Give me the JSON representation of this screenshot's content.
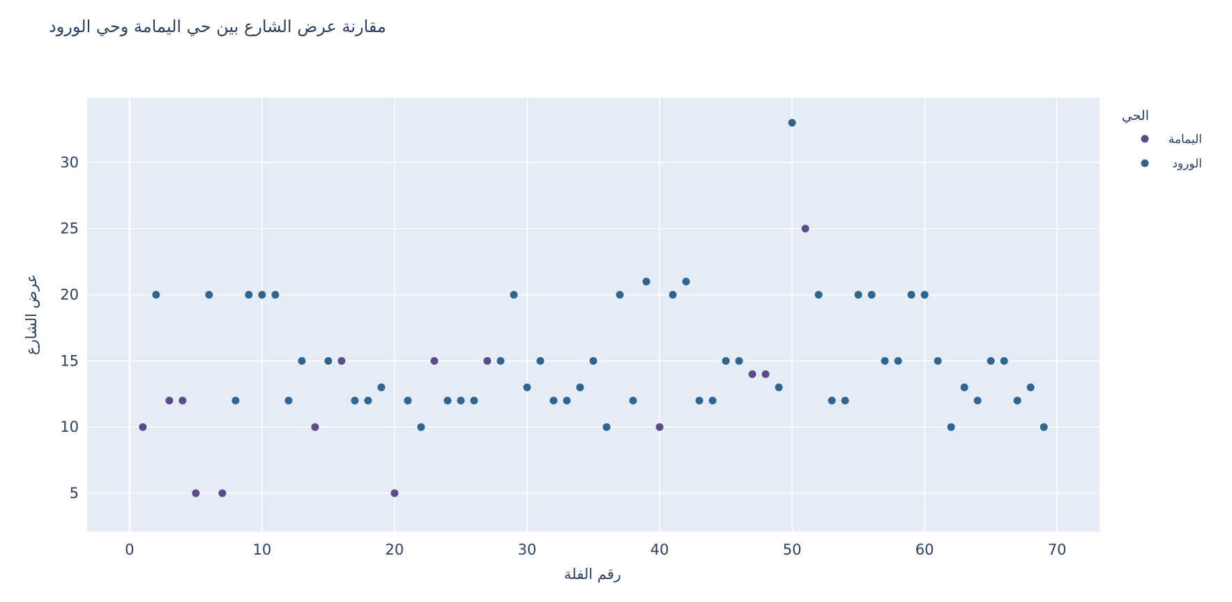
{
  "chart_data": {
    "type": "scatter",
    "title": "مقارنة عرض الشارع بين حي اليمامة وحي الورود",
    "xlabel": "رقم الفلة",
    "ylabel": "عرض الشارع",
    "xlim": [
      -3.2,
      73.2
    ],
    "ylim": [
      2.1,
      34.9
    ],
    "x_ticks": [
      0,
      10,
      20,
      30,
      40,
      50,
      60,
      70
    ],
    "y_ticks": [
      5,
      10,
      15,
      20,
      25,
      30
    ],
    "grid": true,
    "legend": {
      "title": "الحي",
      "position": "top-right"
    },
    "plot_bgcolor": "#e5ecf6",
    "series": [
      {
        "name": "اليمامة",
        "color": "#5c4a8c",
        "x": [
          1,
          3,
          4,
          5,
          7,
          14,
          16,
          20,
          23,
          27,
          40,
          47,
          48,
          51
        ],
        "y": [
          10,
          12,
          12,
          5,
          5,
          10,
          15,
          5,
          15,
          15,
          10,
          14,
          14,
          25
        ]
      },
      {
        "name": "الورود",
        "color": "#2f6591",
        "x": [
          2,
          6,
          8,
          9,
          10,
          11,
          12,
          13,
          15,
          17,
          18,
          19,
          21,
          22,
          24,
          25,
          26,
          28,
          29,
          30,
          31,
          32,
          33,
          34,
          35,
          36,
          37,
          38,
          39,
          41,
          42,
          43,
          44,
          45,
          46,
          49,
          50,
          52,
          53,
          54,
          55,
          56,
          57,
          58,
          59,
          60,
          61,
          62,
          63,
          64,
          65,
          66,
          67,
          68,
          69
        ],
        "y": [
          20,
          20,
          12,
          20,
          20,
          20,
          12,
          15,
          15,
          12,
          12,
          13,
          12,
          10,
          12,
          12,
          12,
          15,
          20,
          13,
          15,
          12,
          12,
          13,
          15,
          10,
          20,
          12,
          21,
          20,
          21,
          12,
          12,
          15,
          15,
          13,
          33,
          20,
          12,
          12,
          20,
          20,
          15,
          15,
          20,
          20,
          15,
          10,
          13,
          12,
          15,
          15,
          12,
          13,
          10
        ]
      }
    ]
  }
}
